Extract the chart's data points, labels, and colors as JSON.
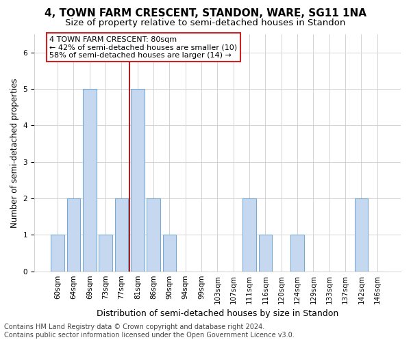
{
  "title": "4, TOWN FARM CRESCENT, STANDON, WARE, SG11 1NA",
  "subtitle": "Size of property relative to semi-detached houses in Standon",
  "xlabel": "Distribution of semi-detached houses by size in Standon",
  "ylabel": "Number of semi-detached properties",
  "categories": [
    "60sqm",
    "64sqm",
    "69sqm",
    "73sqm",
    "77sqm",
    "81sqm",
    "86sqm",
    "90sqm",
    "94sqm",
    "99sqm",
    "103sqm",
    "107sqm",
    "111sqm",
    "116sqm",
    "120sqm",
    "124sqm",
    "129sqm",
    "133sqm",
    "137sqm",
    "142sqm",
    "146sqm"
  ],
  "values": [
    1,
    2,
    5,
    1,
    2,
    5,
    2,
    1,
    0,
    0,
    0,
    0,
    2,
    1,
    0,
    1,
    0,
    0,
    0,
    2,
    0
  ],
  "bar_color": "#c5d8f0",
  "bar_edgecolor": "#7aaad0",
  "subject_line_color": "#aa2222",
  "subject_line_index": 5,
  "ylim": [
    0,
    6.5
  ],
  "yticks": [
    0,
    1,
    2,
    3,
    4,
    5,
    6
  ],
  "annotation_text": "4 TOWN FARM CRESCENT: 80sqm\n← 42% of semi-detached houses are smaller (10)\n58% of semi-detached houses are larger (14) →",
  "annotation_box_facecolor": "#ffffff",
  "annotation_box_edgecolor": "#cc2222",
  "footer_line1": "Contains HM Land Registry data © Crown copyright and database right 2024.",
  "footer_line2": "Contains public sector information licensed under the Open Government Licence v3.0.",
  "background_color": "#ffffff",
  "plot_bg_color": "#ffffff",
  "grid_color": "#cccccc",
  "title_fontsize": 11,
  "subtitle_fontsize": 9.5,
  "xlabel_fontsize": 9,
  "ylabel_fontsize": 8.5,
  "tick_fontsize": 7.5,
  "footer_fontsize": 7,
  "annotation_fontsize": 8
}
